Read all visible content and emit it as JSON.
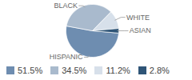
{
  "chart_data": {
    "type": "pie",
    "categories": [
      "HISPANIC",
      "BLACK",
      "WHITE",
      "ASIAN"
    ],
    "values": [
      51.5,
      34.5,
      11.2,
      2.8
    ],
    "value_labels": [
      "51.5%",
      "34.5%",
      "11.2%",
      "2.8%"
    ],
    "colors": [
      "#6e8db0",
      "#a9bacd",
      "#d7e0ea",
      "#2f5577"
    ],
    "legend": "bottom"
  }
}
